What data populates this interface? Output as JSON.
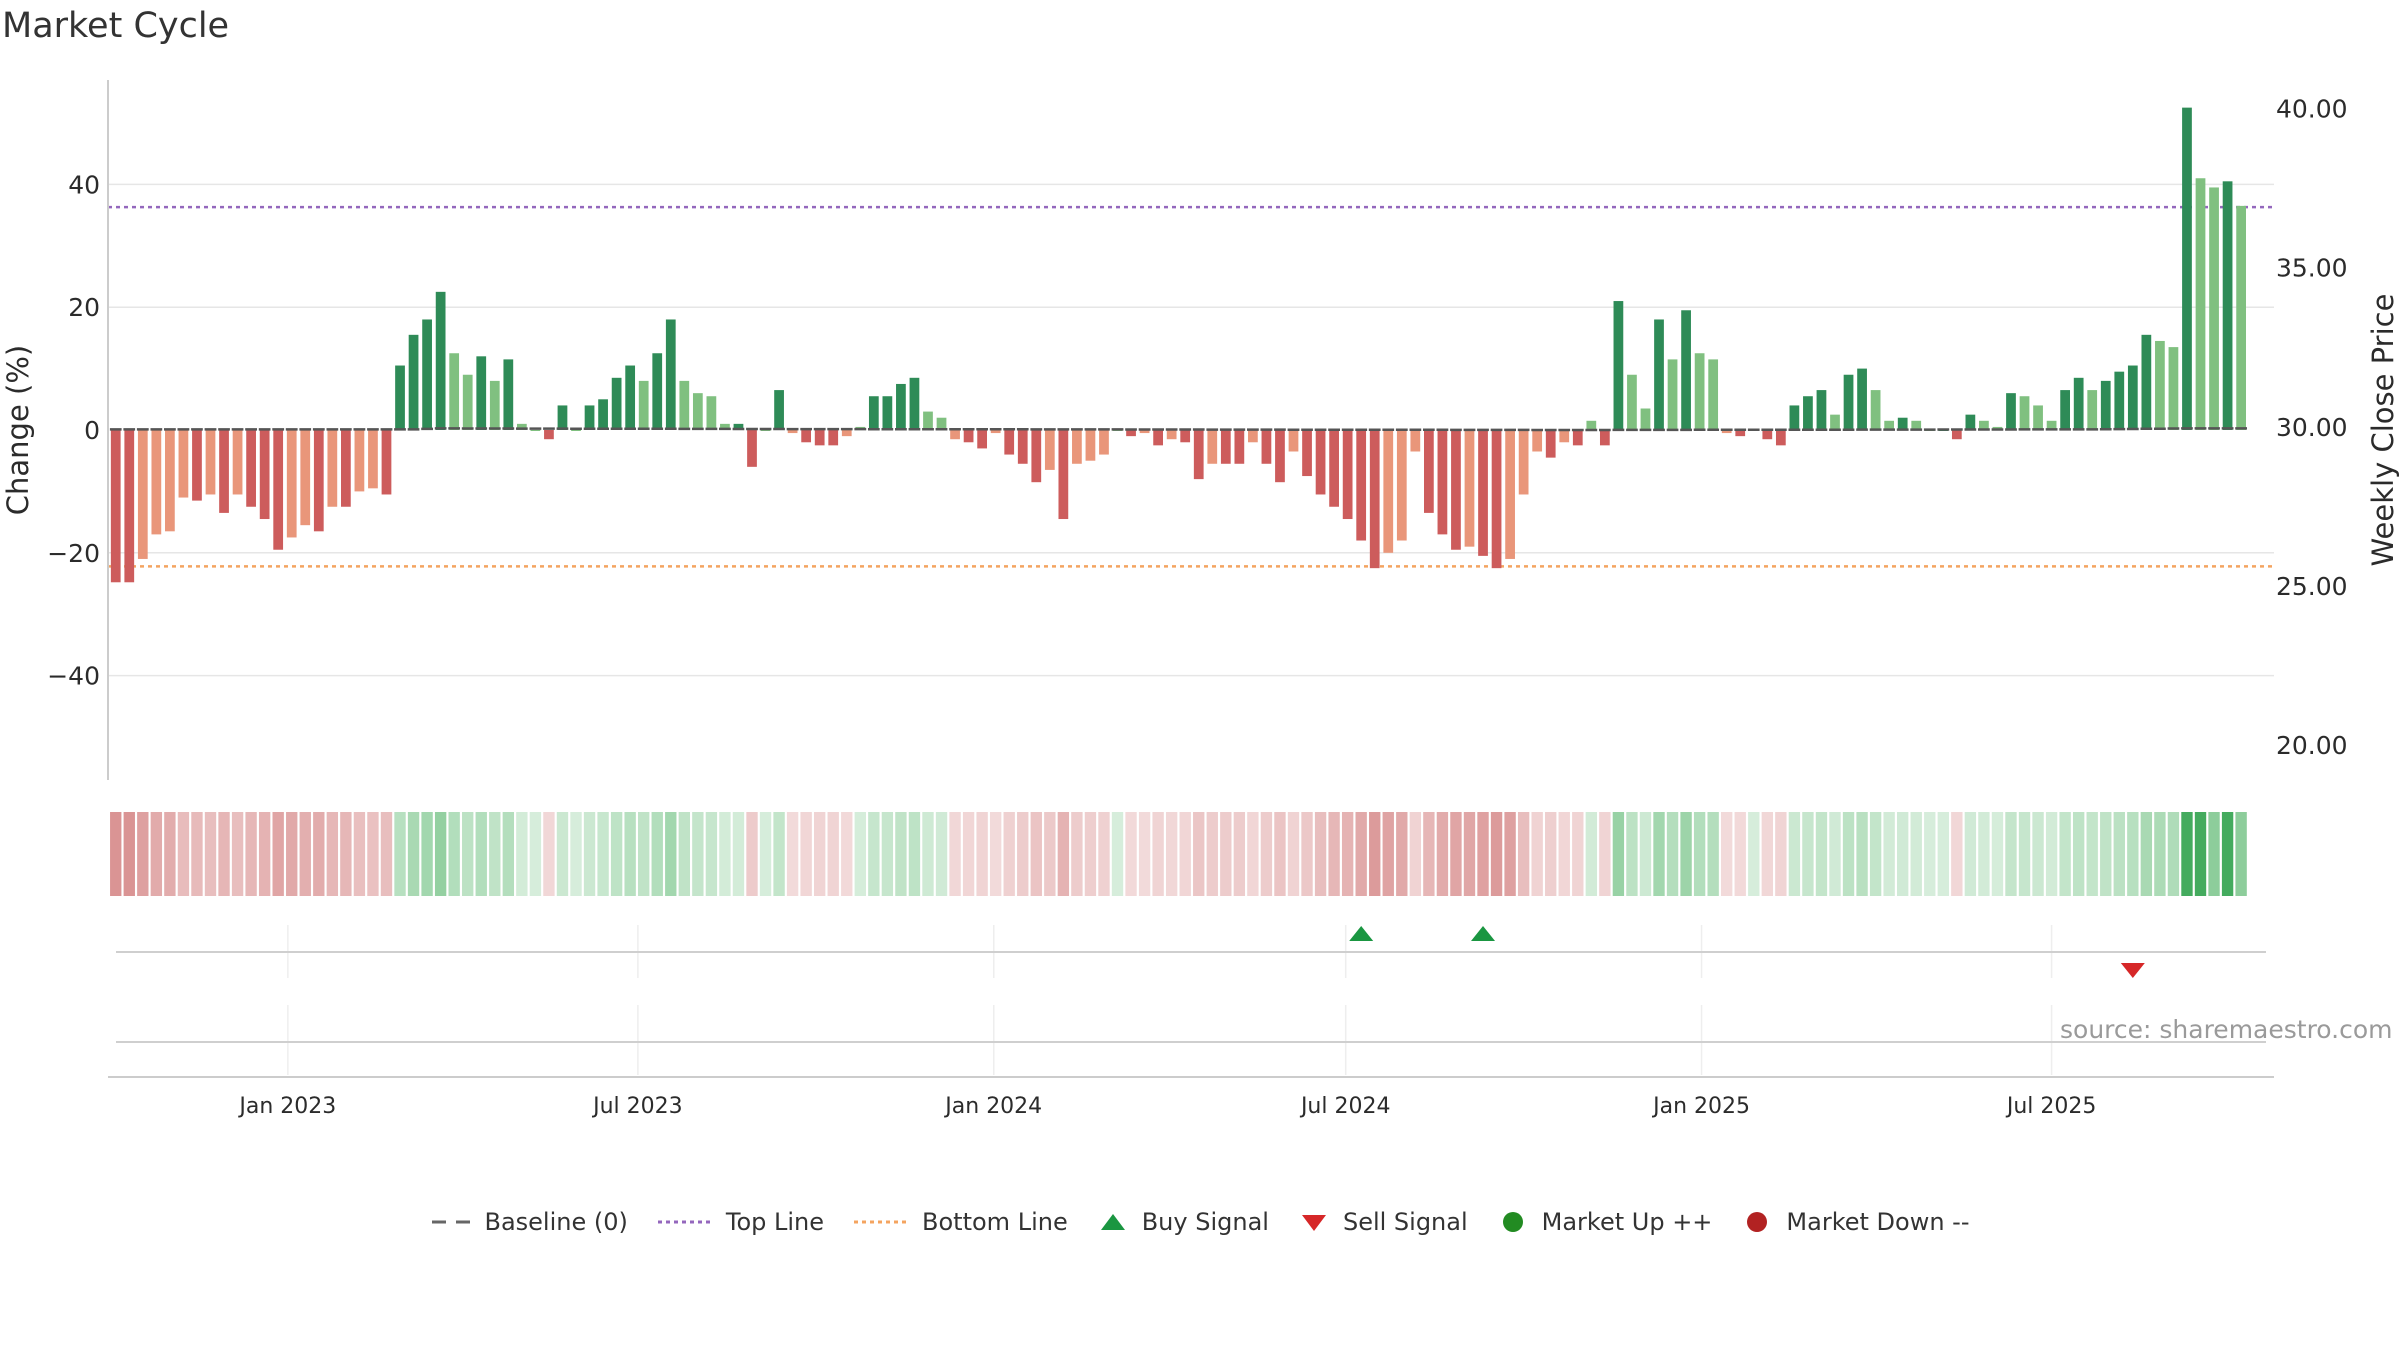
{
  "chart": {
    "title": "Market Cycle",
    "source_note": "source: sharemaestro.com"
  },
  "chart_data": {
    "type": "bar",
    "title": "Market Cycle",
    "ylabel": "Change (%)",
    "y2label": "Weekly Close Price",
    "ylim": [
      -57,
      57
    ],
    "yticks": [
      -40,
      -20,
      0,
      20,
      40
    ],
    "y2lim": [
      18.9,
      40.9
    ],
    "y2ticks": [
      "20.00",
      "25.00",
      "30.00",
      "35.00",
      "40.00"
    ],
    "xlim": [
      "2022-09-30",
      "2025-10-24"
    ],
    "xticks": [
      {
        "date": "2023-01-01",
        "label": "Jan 2023"
      },
      {
        "date": "2023-07-01",
        "label": "Jul 2023"
      },
      {
        "date": "2024-01-01",
        "label": "Jan 2024"
      },
      {
        "date": "2024-07-01",
        "label": "Jul 2024"
      },
      {
        "date": "2025-01-01",
        "label": "Jan 2025"
      },
      {
        "date": "2025-07-01",
        "label": "Jul 2025"
      }
    ],
    "start_week": "2022-10-04",
    "top_line": 36.3,
    "bottom_line": -22.2,
    "values": [
      -24.8,
      -24.8,
      -21,
      -17,
      -16.5,
      -11,
      -11.5,
      -10.5,
      -13.5,
      -10.5,
      -12.5,
      -14.5,
      -19.5,
      -17.5,
      -15.5,
      -16.5,
      -12.5,
      -12.5,
      -10,
      -9.5,
      -10.5,
      10.5,
      15.5,
      18,
      22.5,
      12.5,
      9,
      12,
      8,
      11.5,
      1,
      0,
      -1.5,
      4,
      0,
      4,
      5,
      8.5,
      10.5,
      8,
      12.5,
      18,
      8,
      6,
      5.5,
      1,
      1,
      -6,
      0,
      6.5,
      -0.5,
      -2,
      -2.5,
      -2.5,
      -1,
      0.5,
      5.5,
      5.5,
      7.5,
      8.5,
      3,
      2,
      -1.5,
      -2,
      -3,
      -0.5,
      -4,
      -5.5,
      -8.5,
      -6.5,
      -14.5,
      -5.5,
      -5,
      -4,
      0,
      -1,
      -0.5,
      -2.5,
      -1.5,
      -2,
      -8,
      -5.5,
      -5.5,
      -5.5,
      -2,
      -5.5,
      -8.5,
      -3.5,
      -7.5,
      -10.5,
      -12.5,
      -14.5,
      -18,
      -22.5,
      -20,
      -18,
      -3.5,
      -13.5,
      -17,
      -19.5,
      -19,
      -20.5,
      -22.5,
      -21,
      -10.5,
      -3.5,
      -4.5,
      -2,
      -2.5,
      1.5,
      -2.5,
      21,
      9,
      3.5,
      18,
      11.5,
      19.5,
      12.5,
      11.5,
      -0.5,
      -1,
      0,
      -1.5,
      -2.5,
      4,
      5.5,
      6.5,
      2.5,
      9,
      10,
      6.5,
      1.5,
      2,
      1.5,
      0,
      0,
      -1.5,
      2.5,
      1.5,
      0.5,
      6,
      5.5,
      4,
      1.5,
      6.5,
      8.5,
      6.5,
      8,
      9.5,
      10.5,
      15.5,
      14.5,
      13.5,
      52.5,
      41,
      39.5,
      40.5,
      36.5
    ],
    "price": [
      {
        "week": 0,
        "close": 29.92
      },
      {
        "week": 22,
        "close": 29.92
      },
      {
        "week": 24,
        "close": 29.95
      },
      {
        "week": 49,
        "close": 29.93
      },
      {
        "week": 108,
        "close": 29.9
      },
      {
        "week": 146,
        "close": 29.92
      },
      {
        "week": 153,
        "close": 29.95
      }
    ],
    "signals": {
      "buy_weeks": [
        92,
        101
      ],
      "sell_weeks": [
        149
      ]
    },
    "legend": [
      {
        "key": "baseline",
        "label": "Baseline (0)"
      },
      {
        "key": "top",
        "label": "Top Line"
      },
      {
        "key": "bottom",
        "label": "Bottom Line"
      },
      {
        "key": "buy",
        "label": "Buy Signal"
      },
      {
        "key": "sell",
        "label": "Sell Signal"
      },
      {
        "key": "up",
        "label": "Market Up ++"
      },
      {
        "key": "down",
        "label": "Market Down --"
      }
    ],
    "legend_position": "bottom-center",
    "grid": true
  },
  "colors": {
    "up_strong": "#2e8b57",
    "up_light": "#80c080",
    "down_strong": "#cd5c5c",
    "down_light": "#e9967a",
    "top_line": "#9467bd",
    "bottom_line": "#f4a460",
    "buy": "#1a9641",
    "sell": "#d62728",
    "market_up": "#228b22",
    "market_down": "#b22222",
    "baseline": "#666666"
  }
}
